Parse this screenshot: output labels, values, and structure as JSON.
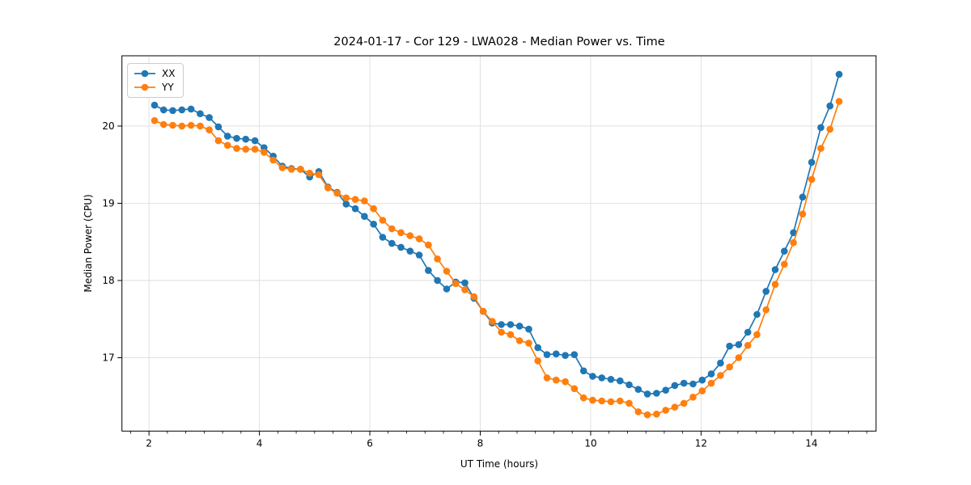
{
  "figure": {
    "title": "2024-01-17 - Cor 129 - LWA028 - Median Power vs. Time",
    "background_color": "#ffffff"
  },
  "legend": {
    "position": "upper left",
    "items": [
      {
        "label": "XX",
        "color": "#1f77b4"
      },
      {
        "label": "YY",
        "color": "#ff7f0e"
      }
    ]
  },
  "chart_data": {
    "type": "line",
    "title": "2024-01-17 - Cor 129 - LWA028 - Median Power vs. Time",
    "xlabel": "UT Time (hours)",
    "ylabel": "Median Power (CPU)",
    "xlim": [
      1.51,
      15.17
    ],
    "ylim": [
      16.05,
      20.91
    ],
    "xticks": [
      2,
      4,
      6,
      8,
      10,
      12,
      14
    ],
    "yticks": [
      17,
      18,
      19,
      20
    ],
    "x_minor_tick_step": 0.33333,
    "grid": true,
    "grid_color": "#dedede",
    "spine_color": "#000000",
    "marker": "circle",
    "legend_position": "upper left",
    "x": [
      2.1,
      2.265,
      2.431,
      2.596,
      2.761,
      2.927,
      3.092,
      3.257,
      3.423,
      3.588,
      3.753,
      3.919,
      4.084,
      4.249,
      4.415,
      4.58,
      4.745,
      4.911,
      5.076,
      5.241,
      5.407,
      5.572,
      5.737,
      5.903,
      6.068,
      6.233,
      6.399,
      6.564,
      6.729,
      6.895,
      7.06,
      7.225,
      7.391,
      7.556,
      7.721,
      7.887,
      8.052,
      8.217,
      8.383,
      8.548,
      8.713,
      8.879,
      9.044,
      9.209,
      9.375,
      9.54,
      9.705,
      9.871,
      10.036,
      10.201,
      10.367,
      10.532,
      10.697,
      10.863,
      11.028,
      11.193,
      11.359,
      11.524,
      11.689,
      11.855,
      12.02,
      12.185,
      12.351,
      12.516,
      12.681,
      12.847,
      13.012,
      13.177,
      13.343,
      13.508,
      13.673,
      13.839,
      14.004,
      14.169,
      14.335,
      14.5
    ],
    "series": [
      {
        "name": "XX",
        "color": "#1f77b4",
        "values": [
          20.27,
          20.21,
          20.2,
          20.21,
          20.22,
          20.16,
          20.11,
          19.99,
          19.87,
          19.84,
          19.83,
          19.81,
          19.72,
          19.61,
          19.48,
          19.45,
          19.44,
          19.34,
          19.41,
          19.21,
          19.14,
          18.99,
          18.93,
          18.83,
          18.73,
          18.56,
          18.48,
          18.43,
          18.38,
          18.33,
          18.13,
          18.0,
          17.89,
          17.98,
          17.97,
          17.77,
          17.6,
          17.45,
          17.43,
          17.43,
          17.41,
          17.37,
          17.13,
          17.04,
          17.05,
          17.03,
          17.04,
          16.83,
          16.76,
          16.74,
          16.72,
          16.7,
          16.65,
          16.59,
          16.53,
          16.54,
          16.58,
          16.64,
          16.67,
          16.66,
          16.71,
          16.79,
          16.93,
          17.15,
          17.17,
          17.33,
          17.56,
          17.86,
          18.14,
          18.38,
          18.62,
          19.08,
          19.53,
          19.98,
          20.26,
          20.67
        ]
      },
      {
        "name": "YY",
        "color": "#ff7f0e",
        "values": [
          20.07,
          20.02,
          20.01,
          20.0,
          20.01,
          20.0,
          19.95,
          19.81,
          19.75,
          19.71,
          19.7,
          19.7,
          19.66,
          19.56,
          19.46,
          19.44,
          19.44,
          19.39,
          19.37,
          19.2,
          19.13,
          19.07,
          19.05,
          19.03,
          18.93,
          18.78,
          18.67,
          18.62,
          18.58,
          18.54,
          18.46,
          18.28,
          18.12,
          17.96,
          17.88,
          17.79,
          17.6,
          17.47,
          17.33,
          17.3,
          17.22,
          17.19,
          16.96,
          16.74,
          16.71,
          16.69,
          16.6,
          16.48,
          16.45,
          16.44,
          16.43,
          16.44,
          16.41,
          16.3,
          16.26,
          16.27,
          16.32,
          16.36,
          16.41,
          16.49,
          16.57,
          16.67,
          16.77,
          16.88,
          17.0,
          17.16,
          17.3,
          17.62,
          17.95,
          18.21,
          18.49,
          18.86,
          19.31,
          19.71,
          19.96,
          20.32
        ]
      }
    ]
  }
}
